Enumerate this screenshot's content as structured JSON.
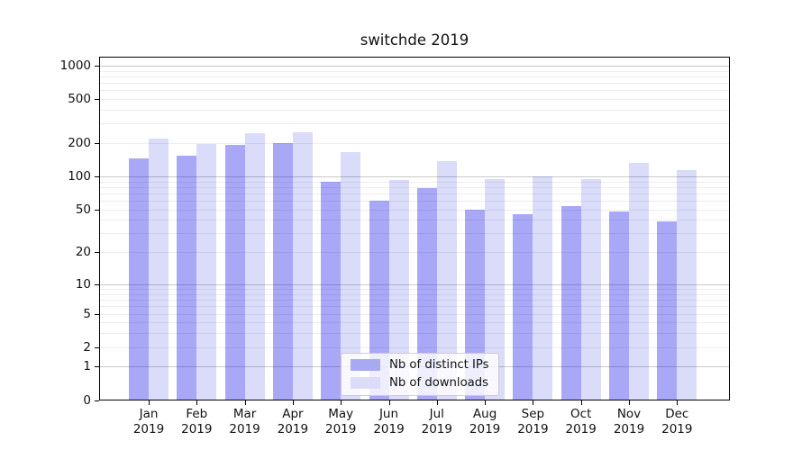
{
  "chart_data": {
    "type": "bar",
    "title": "switchde 2019",
    "x": [
      "Jan",
      "Feb",
      "Mar",
      "Apr",
      "May",
      "Jun",
      "Jul",
      "Aug",
      "Sep",
      "Oct",
      "Nov",
      "Dec"
    ],
    "x_year": "2019",
    "series": [
      {
        "name": "Nb of distinct IPs",
        "color": "rgba(0,0,230,0.34)",
        "legend_color": "#a9a9f2",
        "values": [
          146,
          152,
          191,
          199,
          89,
          60,
          78,
          50,
          45,
          54,
          48,
          39
        ]
      },
      {
        "name": "Nb of downloads",
        "color": "rgba(0,0,220,0.14)",
        "legend_color": "#dcdcf8",
        "values": [
          216,
          193,
          242,
          248,
          166,
          93,
          136,
          95,
          100,
          95,
          132,
          114
        ]
      }
    ],
    "y_ticks": [
      0,
      1,
      2,
      5,
      10,
      20,
      50,
      100,
      200,
      500,
      1000
    ],
    "y_scale": "log (symlog, zero baseline shown)",
    "ylim": [
      0,
      1200
    ],
    "grid": "horizontal, major decades darker + minor log subdivisions",
    "legend_position": "lower center"
  }
}
